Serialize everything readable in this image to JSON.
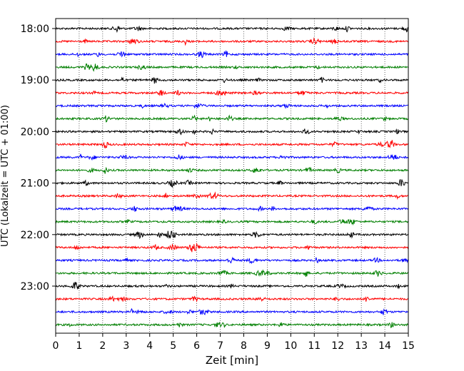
{
  "chart_data": {
    "type": "line",
    "title": "",
    "xlabel": "Zeit  [min]",
    "ylabel": "UTC (Lokalzeit = UTC + 01:00)",
    "x_range": [
      0,
      15
    ],
    "x_ticks": [
      "0",
      "1",
      "2",
      "3",
      "4",
      "5",
      "6",
      "7",
      "8",
      "9",
      "10",
      "11",
      "12",
      "13",
      "14",
      "15"
    ],
    "y_ticks": [
      "18:00",
      "19:00",
      "20:00",
      "21:00",
      "22:00",
      "23:00"
    ],
    "grid": "vertical dotted",
    "trace_interval_min": 15,
    "trace_colors": [
      "#000000",
      "#ff0000",
      "#0000ff",
      "#007f00"
    ],
    "traces": [
      {
        "start": "18:00",
        "color": "#000000"
      },
      {
        "start": "18:15",
        "color": "#ff0000"
      },
      {
        "start": "18:30",
        "color": "#0000ff"
      },
      {
        "start": "18:45",
        "color": "#007f00"
      },
      {
        "start": "19:00",
        "color": "#000000"
      },
      {
        "start": "19:15",
        "color": "#ff0000"
      },
      {
        "start": "19:30",
        "color": "#0000ff"
      },
      {
        "start": "19:45",
        "color": "#007f00"
      },
      {
        "start": "20:00",
        "color": "#000000"
      },
      {
        "start": "20:15",
        "color": "#ff0000"
      },
      {
        "start": "20:30",
        "color": "#0000ff"
      },
      {
        "start": "20:45",
        "color": "#007f00"
      },
      {
        "start": "21:00",
        "color": "#000000"
      },
      {
        "start": "21:15",
        "color": "#ff0000"
      },
      {
        "start": "21:30",
        "color": "#0000ff"
      },
      {
        "start": "21:45",
        "color": "#007f00"
      },
      {
        "start": "22:00",
        "color": "#000000"
      },
      {
        "start": "22:15",
        "color": "#ff0000"
      },
      {
        "start": "22:30",
        "color": "#0000ff"
      },
      {
        "start": "22:45",
        "color": "#007f00"
      },
      {
        "start": "23:00",
        "color": "#000000"
      },
      {
        "start": "23:15",
        "color": "#ff0000"
      },
      {
        "start": "23:30",
        "color": "#0000ff"
      },
      {
        "start": "23:45",
        "color": "#007f00"
      }
    ]
  }
}
